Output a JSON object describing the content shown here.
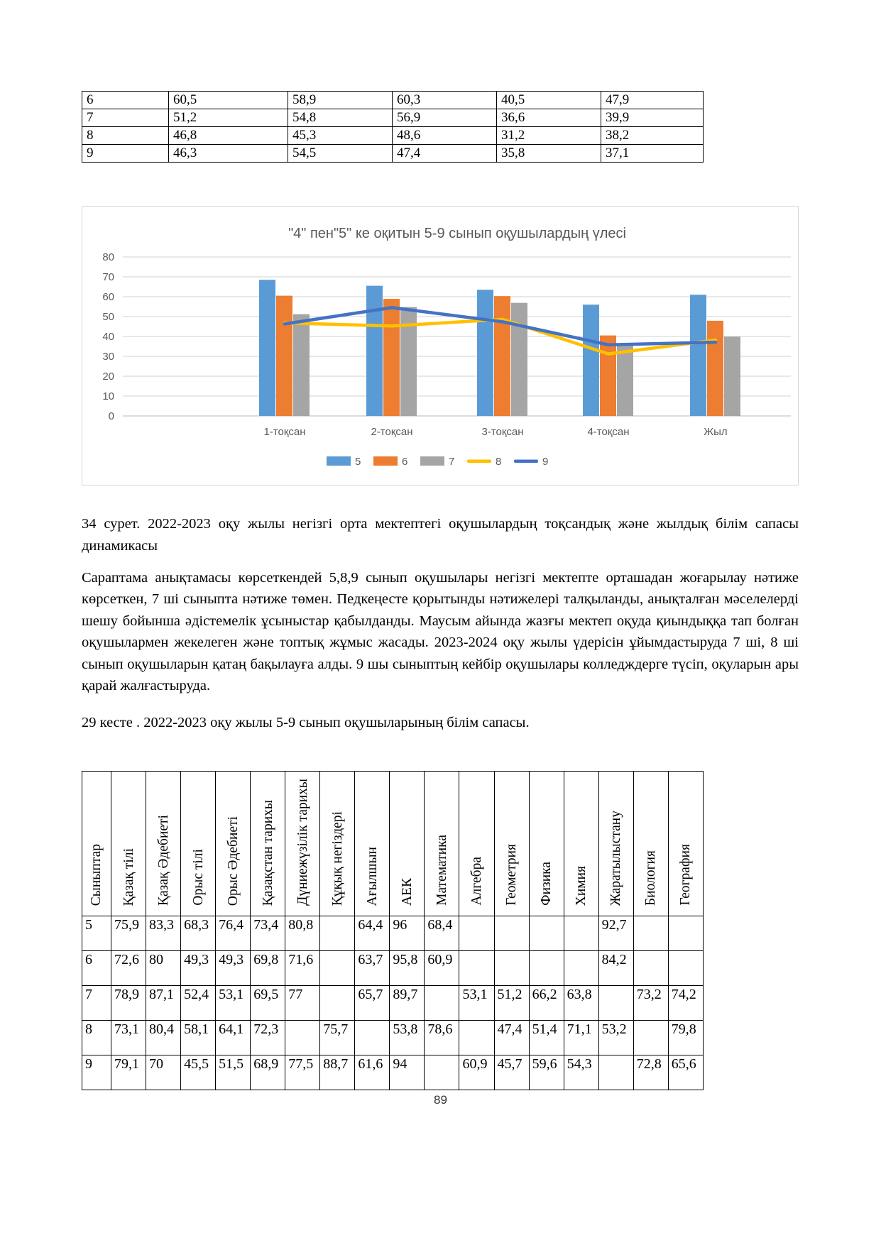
{
  "page": {
    "number": "89"
  },
  "quarterly_table": {
    "rows": [
      [
        "6",
        "60,5",
        "58,9",
        "60,3",
        "40,5",
        "47,9"
      ],
      [
        "7",
        "51,2",
        "54,8",
        "56,9",
        "36,6",
        "39,9"
      ],
      [
        "8",
        "46,8",
        "45,3",
        "48,6",
        "31,2",
        "38,2"
      ],
      [
        "9",
        "46,3",
        "54,5",
        "47,4",
        "35,8",
        "37,1"
      ]
    ]
  },
  "chart_data": {
    "type": "bar",
    "title": "\"4\" пен\"5\" ке оқитын 5-9 сынып оқушылардың үлесі",
    "categories": [
      "1-тоқсан",
      "2-тоқсан",
      "3-тоқсан",
      "4-тоқсан",
      "Жыл"
    ],
    "series": [
      {
        "name": "5",
        "kind": "bar",
        "color": "#5B9BD5",
        "values": [
          68.5,
          65.5,
          63.5,
          56.0,
          61.0
        ]
      },
      {
        "name": "6",
        "kind": "bar",
        "color": "#ED7D31",
        "values": [
          60.5,
          58.9,
          60.3,
          40.5,
          47.9
        ]
      },
      {
        "name": "7",
        "kind": "bar",
        "color": "#A5A5A5",
        "values": [
          51.2,
          54.8,
          56.9,
          36.6,
          39.9
        ]
      },
      {
        "name": "8",
        "kind": "line",
        "color": "#FFC000",
        "values": [
          46.8,
          45.3,
          48.6,
          31.2,
          38.2
        ]
      },
      {
        "name": "9",
        "kind": "line",
        "color": "#4472C4",
        "values": [
          46.3,
          54.5,
          47.4,
          35.8,
          37.1
        ]
      }
    ],
    "ylim": [
      0,
      80
    ],
    "ytick_step": 10,
    "grid": true,
    "legend_position": "bottom",
    "colors": {
      "grid": "#D9D9D9",
      "axis_line": "#C6C6C6",
      "text": "#595959"
    }
  },
  "figure_caption": "34 сурет. 2022-2023 оқу жылы негізгі орта мектептегі оқушылардың тоқсандық және жылдық білім сапасы динамикасы",
  "paragraph": "Сараптама анықтамасы көрсеткендей 5,8,9 сынып оқушылары негізгі мектепте орташадан жоғарылау нәтиже көрсеткен, 7 ші сыныпта нәтиже төмен. Педкеңесте қорытынды нәтижелері талқыланды, анықталған мәселелерді шешу бойынша әдістемелік ұсыныстар қабылданды. Маусым айында жазғы мектеп оқуда қиындыққа тап болған оқушылармен жекелеген және топтық жұмыс жасады. 2023-2024 оқу жылы үдерісін ұйымдастыруда 7 ші, 8 ші сынып оқушыларын қатаң бақылауға алды. 9 шы сыныптың кейбір оқушылары колледждерге түсіп, оқуларын ары қарай жалғастыруда.",
  "table_caption": "29 кесте . 2022-2023 оқу жылы 5-9 сынып оқушыларының білім сапасы.",
  "subjects_table": {
    "headers": [
      "Сыныптар",
      "Қазақ тілі",
      "Қазақ Әдебиеті",
      "Орыс тілі",
      "Орыс Әдебиеті",
      "Қазақстан тарихы",
      "Дүниежүзілік тарихы",
      "Құқық негіздері",
      "Ағылшын",
      "АЕК",
      "Математика",
      "Алгебра",
      "Геометрия",
      "Физика",
      "Химия",
      "Жаратылыстану",
      "Биология",
      "География"
    ],
    "rows": [
      [
        "5",
        "75,9",
        "83,3",
        "68,3",
        "76,4",
        "73,4",
        "80,8",
        "",
        "64,4",
        "96",
        "68,4",
        "",
        "",
        "",
        "",
        "92,7",
        "",
        ""
      ],
      [
        "6",
        "72,6",
        "80",
        "49,3",
        "49,3",
        "69,8",
        "71,6",
        "",
        "63,7",
        "95,8",
        "60,9",
        "",
        "",
        "",
        "",
        "84,2",
        "",
        ""
      ],
      [
        "7",
        "78,9",
        "87,1",
        "52,4",
        "53,1",
        "69,5",
        "77",
        "",
        "65,7",
        "89,7",
        "",
        "53,1",
        "51,2",
        "66,2",
        "63,8",
        "",
        "73,2",
        "74,2"
      ],
      [
        "8",
        "73,1",
        "80,4",
        "58,1",
        "64,1",
        "72,3",
        "",
        "75,7",
        "",
        "53,8",
        "78,6",
        "",
        "47,4",
        "51,4",
        "71,1",
        "53,2",
        "",
        "79,8"
      ],
      [
        "9",
        "79,1",
        "70",
        "45,5",
        "51,5",
        "68,9",
        "77,5",
        "88,7",
        "61,6",
        "94",
        "",
        "60,9",
        "45,7",
        "59,6",
        "54,3",
        "",
        "72,8",
        "65,6"
      ]
    ]
  }
}
